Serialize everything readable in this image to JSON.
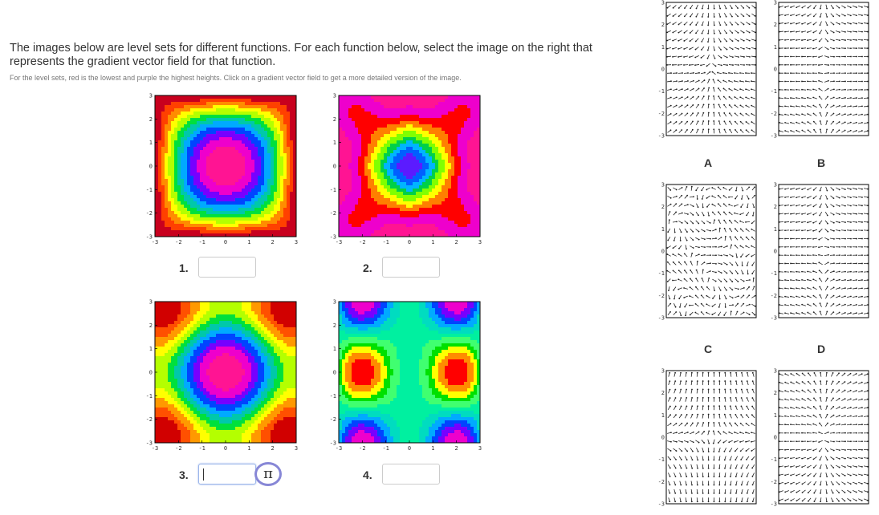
{
  "instructions": {
    "main": "The images below are level sets for different functions. For each function below, select the image on the right that represents the gradient vector field for that function.",
    "sub": "For the level sets, red is the lowest and purple the highest heights. Click on a gradient vector field to get a more detailed version of the image."
  },
  "axis_ticks": [
    "-3",
    "-2",
    "-1",
    "0",
    "1",
    "2",
    "3"
  ],
  "level_sets": [
    {
      "number": "1.",
      "answer": "",
      "palette": [
        "#c8001e",
        "#ff4000",
        "#ff8c00",
        "#ffff00",
        "#b4ff00",
        "#00e03c",
        "#00c8aa",
        "#00aaff",
        "#0044ff",
        "#7700ff",
        "#ee00cc",
        "#ff1493"
      ]
    },
    {
      "number": "2.",
      "answer": "",
      "palette": [
        "#ff1493",
        "#ee00cc",
        "#ff0000",
        "#ff7f00",
        "#ffff00",
        "#80ff00",
        "#00d048",
        "#00b4ff",
        "#0060ff",
        "#5b1bff"
      ]
    },
    {
      "number": "3.",
      "answer": "",
      "palette": [
        "#d10000",
        "#ff5000",
        "#ff9900",
        "#ffff00",
        "#b4ff00",
        "#00e03c",
        "#00c8aa",
        "#00aaff",
        "#0044ff",
        "#7700ff",
        "#ee00cc",
        "#ff1493"
      ]
    },
    {
      "number": "4.",
      "answer": "",
      "palette": [
        "#ee00cc",
        "#7700ff",
        "#0044ff",
        "#00aaff",
        "#00dcc0",
        "#00f0a0",
        "#40ff70",
        "#00e000",
        "#ffff00",
        "#ff8c00",
        "#ff0000"
      ]
    }
  ],
  "vector_fields": [
    {
      "label": "A",
      "arrow_color": "#222222"
    },
    {
      "label": "B",
      "arrow_color": "#222222"
    },
    {
      "label": "C",
      "arrow_color": "#222222"
    },
    {
      "label": "D",
      "arrow_color": "#222222"
    },
    {
      "label": "",
      "arrow_color": "#222222"
    },
    {
      "label": "",
      "arrow_color": "#222222"
    }
  ],
  "pi_button": {
    "symbol": "π"
  }
}
